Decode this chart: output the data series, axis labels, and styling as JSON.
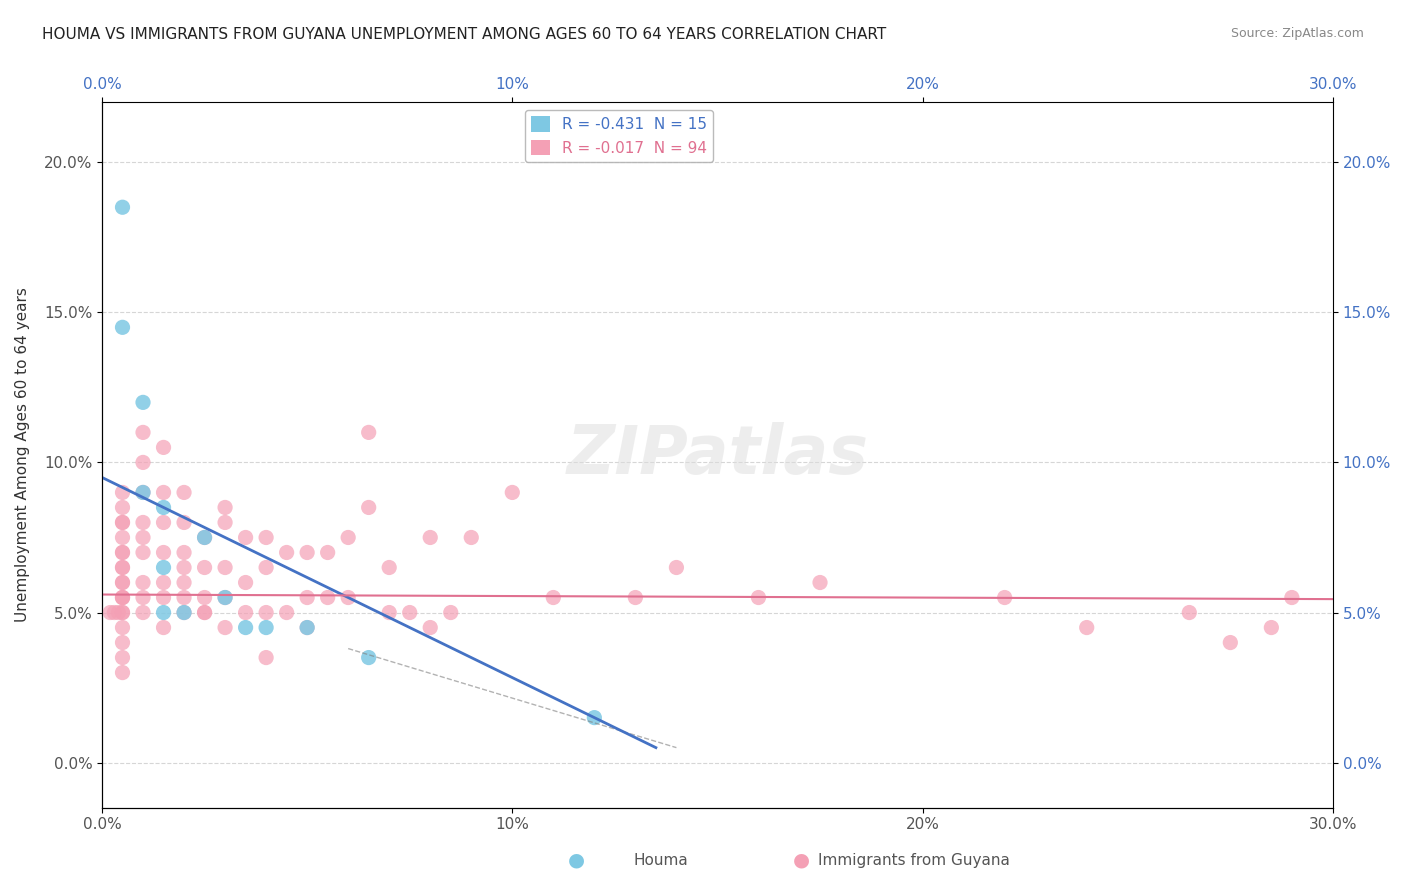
{
  "title": "HOUMA VS IMMIGRANTS FROM GUYANA UNEMPLOYMENT AMONG AGES 60 TO 64 YEARS CORRELATION CHART",
  "source": "Source: ZipAtlas.com",
  "xlabel_ticks": [
    "0.0%",
    "10%",
    "20%",
    "30.0%"
  ],
  "xlabel_vals": [
    0.0,
    10.0,
    20.0,
    30.0
  ],
  "ylabel": "Unemployment Among Ages 60 to 64 years",
  "ylabel_ticks": [
    "0.0%",
    "5.0%",
    "10.0%",
    "15.0%",
    "20.0%"
  ],
  "ylabel_vals": [
    0.0,
    5.0,
    10.0,
    15.0,
    20.0
  ],
  "xlim": [
    0.0,
    30.0
  ],
  "ylim": [
    -1.5,
    22.0
  ],
  "houma_R": -0.431,
  "houma_N": 15,
  "guyana_R": -0.017,
  "guyana_N": 94,
  "houma_color": "#7ec8e3",
  "guyana_color": "#f4a0b5",
  "houma_line_color": "#4472c4",
  "guyana_line_color": "#e07090",
  "watermark": "ZIPatlas",
  "legend_label_houma": "Houma",
  "legend_label_guyana": "Immigrants from Guyana",
  "houma_x": [
    0.5,
    0.5,
    1.0,
    1.0,
    1.5,
    1.5,
    1.5,
    2.0,
    2.5,
    3.0,
    3.5,
    4.0,
    5.0,
    6.5,
    12.0
  ],
  "houma_y": [
    18.5,
    14.5,
    12.0,
    9.0,
    8.5,
    6.5,
    5.0,
    5.0,
    7.5,
    5.5,
    4.5,
    4.5,
    4.5,
    3.5,
    1.5
  ],
  "guyana_x": [
    0.2,
    0.3,
    0.4,
    0.5,
    0.5,
    0.5,
    0.5,
    0.5,
    0.5,
    0.5,
    0.5,
    0.5,
    0.5,
    0.5,
    0.5,
    0.5,
    0.5,
    0.5,
    0.5,
    0.5,
    0.5,
    0.5,
    0.5,
    1.0,
    1.0,
    1.0,
    1.0,
    1.0,
    1.0,
    1.0,
    1.0,
    1.0,
    1.5,
    1.5,
    1.5,
    1.5,
    1.5,
    1.5,
    2.0,
    2.0,
    2.0,
    2.0,
    2.0,
    2.0,
    2.5,
    2.5,
    2.5,
    2.5,
    3.0,
    3.0,
    3.0,
    3.0,
    3.5,
    3.5,
    3.5,
    4.0,
    4.0,
    4.0,
    4.5,
    4.5,
    5.0,
    5.0,
    5.0,
    5.5,
    5.5,
    6.0,
    6.0,
    6.5,
    7.0,
    7.0,
    7.5,
    8.0,
    8.0,
    8.5,
    9.0,
    10.0,
    11.0,
    13.0,
    14.0,
    16.0,
    17.5,
    22.0,
    24.0,
    26.5,
    27.5,
    28.5,
    29.0,
    4.0,
    1.5,
    2.0,
    3.0,
    2.5,
    6.5
  ],
  "guyana_y": [
    5.0,
    5.0,
    5.0,
    5.0,
    5.5,
    6.0,
    6.5,
    7.0,
    7.5,
    8.0,
    8.5,
    5.5,
    4.5,
    4.0,
    3.5,
    3.0,
    5.0,
    5.5,
    6.0,
    7.0,
    6.5,
    8.0,
    9.0,
    5.0,
    5.5,
    6.0,
    7.0,
    7.5,
    8.0,
    9.0,
    10.0,
    11.0,
    5.5,
    6.0,
    7.0,
    8.0,
    9.0,
    4.5,
    5.0,
    5.5,
    6.0,
    6.5,
    7.0,
    8.0,
    5.0,
    5.5,
    6.5,
    7.5,
    4.5,
    5.5,
    6.5,
    8.5,
    5.0,
    6.0,
    7.5,
    5.0,
    6.5,
    7.5,
    5.0,
    7.0,
    4.5,
    5.5,
    7.0,
    5.5,
    7.0,
    5.5,
    7.5,
    8.5,
    5.0,
    6.5,
    5.0,
    4.5,
    7.5,
    5.0,
    7.5,
    9.0,
    5.5,
    5.5,
    6.5,
    5.5,
    6.0,
    5.5,
    4.5,
    5.0,
    4.0,
    4.5,
    5.5,
    3.5,
    10.5,
    9.0,
    8.0,
    5.0,
    11.0
  ]
}
